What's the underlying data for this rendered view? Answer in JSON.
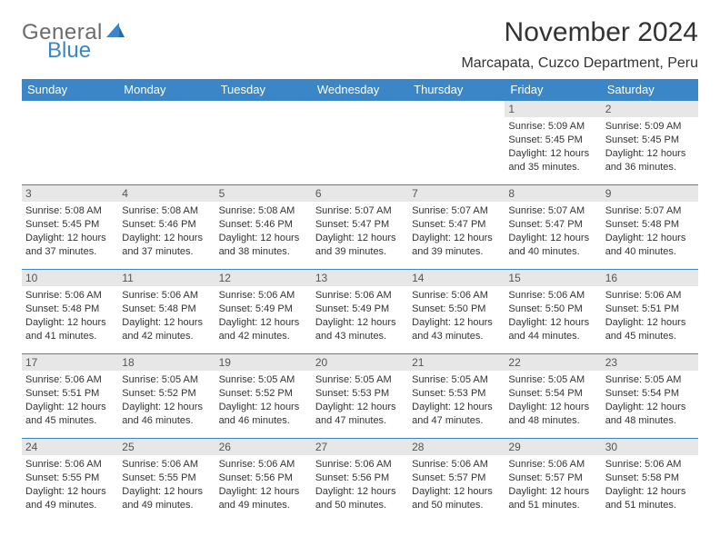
{
  "brand": {
    "top": "General",
    "bottom": "Blue"
  },
  "title": "November 2024",
  "location": "Marcapata, Cuzco Department, Peru",
  "colors": {
    "header_bg": "#3a86c7",
    "header_fg": "#ffffff",
    "daynum_bg": "#e7e7e7",
    "rule": "#3a86c7",
    "logo_gray": "#6b6b6b",
    "logo_blue": "#3a86c7",
    "page_bg": "#ffffff"
  },
  "weekdays": [
    "Sunday",
    "Monday",
    "Tuesday",
    "Wednesday",
    "Thursday",
    "Friday",
    "Saturday"
  ],
  "weeks": [
    [
      {
        "blank": true
      },
      {
        "blank": true
      },
      {
        "blank": true
      },
      {
        "blank": true
      },
      {
        "blank": true
      },
      {
        "day": "1",
        "sunrise": "Sunrise: 5:09 AM",
        "sunset": "Sunset: 5:45 PM",
        "day1": "Daylight: 12 hours",
        "day2": "and 35 minutes."
      },
      {
        "day": "2",
        "sunrise": "Sunrise: 5:09 AM",
        "sunset": "Sunset: 5:45 PM",
        "day1": "Daylight: 12 hours",
        "day2": "and 36 minutes."
      }
    ],
    [
      {
        "day": "3",
        "sunrise": "Sunrise: 5:08 AM",
        "sunset": "Sunset: 5:45 PM",
        "day1": "Daylight: 12 hours",
        "day2": "and 37 minutes."
      },
      {
        "day": "4",
        "sunrise": "Sunrise: 5:08 AM",
        "sunset": "Sunset: 5:46 PM",
        "day1": "Daylight: 12 hours",
        "day2": "and 37 minutes."
      },
      {
        "day": "5",
        "sunrise": "Sunrise: 5:08 AM",
        "sunset": "Sunset: 5:46 PM",
        "day1": "Daylight: 12 hours",
        "day2": "and 38 minutes."
      },
      {
        "day": "6",
        "sunrise": "Sunrise: 5:07 AM",
        "sunset": "Sunset: 5:47 PM",
        "day1": "Daylight: 12 hours",
        "day2": "and 39 minutes."
      },
      {
        "day": "7",
        "sunrise": "Sunrise: 5:07 AM",
        "sunset": "Sunset: 5:47 PM",
        "day1": "Daylight: 12 hours",
        "day2": "and 39 minutes."
      },
      {
        "day": "8",
        "sunrise": "Sunrise: 5:07 AM",
        "sunset": "Sunset: 5:47 PM",
        "day1": "Daylight: 12 hours",
        "day2": "and 40 minutes."
      },
      {
        "day": "9",
        "sunrise": "Sunrise: 5:07 AM",
        "sunset": "Sunset: 5:48 PM",
        "day1": "Daylight: 12 hours",
        "day2": "and 40 minutes."
      }
    ],
    [
      {
        "day": "10",
        "sunrise": "Sunrise: 5:06 AM",
        "sunset": "Sunset: 5:48 PM",
        "day1": "Daylight: 12 hours",
        "day2": "and 41 minutes."
      },
      {
        "day": "11",
        "sunrise": "Sunrise: 5:06 AM",
        "sunset": "Sunset: 5:48 PM",
        "day1": "Daylight: 12 hours",
        "day2": "and 42 minutes."
      },
      {
        "day": "12",
        "sunrise": "Sunrise: 5:06 AM",
        "sunset": "Sunset: 5:49 PM",
        "day1": "Daylight: 12 hours",
        "day2": "and 42 minutes."
      },
      {
        "day": "13",
        "sunrise": "Sunrise: 5:06 AM",
        "sunset": "Sunset: 5:49 PM",
        "day1": "Daylight: 12 hours",
        "day2": "and 43 minutes."
      },
      {
        "day": "14",
        "sunrise": "Sunrise: 5:06 AM",
        "sunset": "Sunset: 5:50 PM",
        "day1": "Daylight: 12 hours",
        "day2": "and 43 minutes."
      },
      {
        "day": "15",
        "sunrise": "Sunrise: 5:06 AM",
        "sunset": "Sunset: 5:50 PM",
        "day1": "Daylight: 12 hours",
        "day2": "and 44 minutes."
      },
      {
        "day": "16",
        "sunrise": "Sunrise: 5:06 AM",
        "sunset": "Sunset: 5:51 PM",
        "day1": "Daylight: 12 hours",
        "day2": "and 45 minutes."
      }
    ],
    [
      {
        "day": "17",
        "sunrise": "Sunrise: 5:06 AM",
        "sunset": "Sunset: 5:51 PM",
        "day1": "Daylight: 12 hours",
        "day2": "and 45 minutes."
      },
      {
        "day": "18",
        "sunrise": "Sunrise: 5:05 AM",
        "sunset": "Sunset: 5:52 PM",
        "day1": "Daylight: 12 hours",
        "day2": "and 46 minutes."
      },
      {
        "day": "19",
        "sunrise": "Sunrise: 5:05 AM",
        "sunset": "Sunset: 5:52 PM",
        "day1": "Daylight: 12 hours",
        "day2": "and 46 minutes."
      },
      {
        "day": "20",
        "sunrise": "Sunrise: 5:05 AM",
        "sunset": "Sunset: 5:53 PM",
        "day1": "Daylight: 12 hours",
        "day2": "and 47 minutes."
      },
      {
        "day": "21",
        "sunrise": "Sunrise: 5:05 AM",
        "sunset": "Sunset: 5:53 PM",
        "day1": "Daylight: 12 hours",
        "day2": "and 47 minutes."
      },
      {
        "day": "22",
        "sunrise": "Sunrise: 5:05 AM",
        "sunset": "Sunset: 5:54 PM",
        "day1": "Daylight: 12 hours",
        "day2": "and 48 minutes."
      },
      {
        "day": "23",
        "sunrise": "Sunrise: 5:05 AM",
        "sunset": "Sunset: 5:54 PM",
        "day1": "Daylight: 12 hours",
        "day2": "and 48 minutes."
      }
    ],
    [
      {
        "day": "24",
        "sunrise": "Sunrise: 5:06 AM",
        "sunset": "Sunset: 5:55 PM",
        "day1": "Daylight: 12 hours",
        "day2": "and 49 minutes."
      },
      {
        "day": "25",
        "sunrise": "Sunrise: 5:06 AM",
        "sunset": "Sunset: 5:55 PM",
        "day1": "Daylight: 12 hours",
        "day2": "and 49 minutes."
      },
      {
        "day": "26",
        "sunrise": "Sunrise: 5:06 AM",
        "sunset": "Sunset: 5:56 PM",
        "day1": "Daylight: 12 hours",
        "day2": "and 49 minutes."
      },
      {
        "day": "27",
        "sunrise": "Sunrise: 5:06 AM",
        "sunset": "Sunset: 5:56 PM",
        "day1": "Daylight: 12 hours",
        "day2": "and 50 minutes."
      },
      {
        "day": "28",
        "sunrise": "Sunrise: 5:06 AM",
        "sunset": "Sunset: 5:57 PM",
        "day1": "Daylight: 12 hours",
        "day2": "and 50 minutes."
      },
      {
        "day": "29",
        "sunrise": "Sunrise: 5:06 AM",
        "sunset": "Sunset: 5:57 PM",
        "day1": "Daylight: 12 hours",
        "day2": "and 51 minutes."
      },
      {
        "day": "30",
        "sunrise": "Sunrise: 5:06 AM",
        "sunset": "Sunset: 5:58 PM",
        "day1": "Daylight: 12 hours",
        "day2": "and 51 minutes."
      }
    ]
  ]
}
